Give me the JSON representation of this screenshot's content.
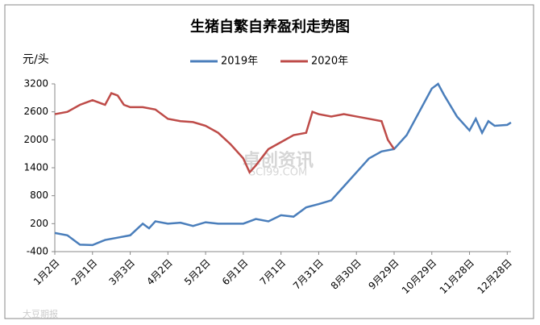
{
  "chart_data": {
    "type": "line",
    "title": "生猪自繁自养盈利走势图",
    "y_label": "元/头",
    "watermark": "卓创资讯",
    "watermark_sub": "SCI99.COM",
    "source_mark": "大豆期报",
    "series": [
      {
        "name": "2019年",
        "color": "#4a7ebb",
        "x": [
          0,
          10,
          20,
          30,
          40,
          50,
          60,
          70,
          75,
          80,
          90,
          100,
          110,
          120,
          130,
          140,
          150,
          160,
          170,
          180,
          190,
          200,
          210,
          220,
          230,
          240,
          250,
          260,
          270,
          280,
          290,
          300,
          305,
          310,
          320,
          330,
          335,
          340,
          345,
          350,
          360,
          363
        ],
        "values": [
          0,
          -50,
          -250,
          -260,
          -150,
          -100,
          -50,
          200,
          100,
          250,
          200,
          220,
          150,
          230,
          200,
          200,
          200,
          300,
          250,
          380,
          350,
          550,
          620,
          700,
          1000,
          1300,
          1600,
          1750,
          1800,
          2100,
          2600,
          3100,
          3200,
          2950,
          2500,
          2200,
          2450,
          2150,
          2400,
          2300,
          2320,
          2370
        ]
      },
      {
        "name": "2020年",
        "color": "#be4b48",
        "x": [
          0,
          10,
          20,
          30,
          40,
          45,
          50,
          55,
          60,
          70,
          80,
          90,
          100,
          110,
          120,
          130,
          140,
          150,
          155,
          160,
          170,
          180,
          190,
          200,
          205,
          210,
          220,
          230,
          240,
          250,
          260,
          265,
          270
        ],
        "values": [
          2550,
          2600,
          2750,
          2850,
          2750,
          3000,
          2950,
          2750,
          2700,
          2700,
          2650,
          2450,
          2400,
          2380,
          2300,
          2150,
          1900,
          1600,
          1300,
          1450,
          1800,
          1950,
          2100,
          2150,
          2600,
          2550,
          2500,
          2550,
          2500,
          2450,
          2400,
          2000,
          1800
        ]
      }
    ],
    "xlim": [
      0,
      363
    ],
    "xticks": [
      {
        "value": 0,
        "label": "1月2日"
      },
      {
        "value": 30,
        "label": "2月1日"
      },
      {
        "value": 60,
        "label": "3月3日"
      },
      {
        "value": 90,
        "label": "4月2日"
      },
      {
        "value": 120,
        "label": "5月2日"
      },
      {
        "value": 150,
        "label": "6月1日"
      },
      {
        "value": 180,
        "label": "7月1日"
      },
      {
        "value": 210,
        "label": "7月31日"
      },
      {
        "value": 240,
        "label": "8月30日"
      },
      {
        "value": 270,
        "label": "9月29日"
      },
      {
        "value": 300,
        "label": "10月29日"
      },
      {
        "value": 330,
        "label": "11月28日"
      },
      {
        "value": 360,
        "label": "12月28日"
      }
    ],
    "ylim": [
      -400,
      3200
    ],
    "yticks": [
      -400,
      200,
      800,
      1400,
      2000,
      2600,
      3200
    ]
  }
}
